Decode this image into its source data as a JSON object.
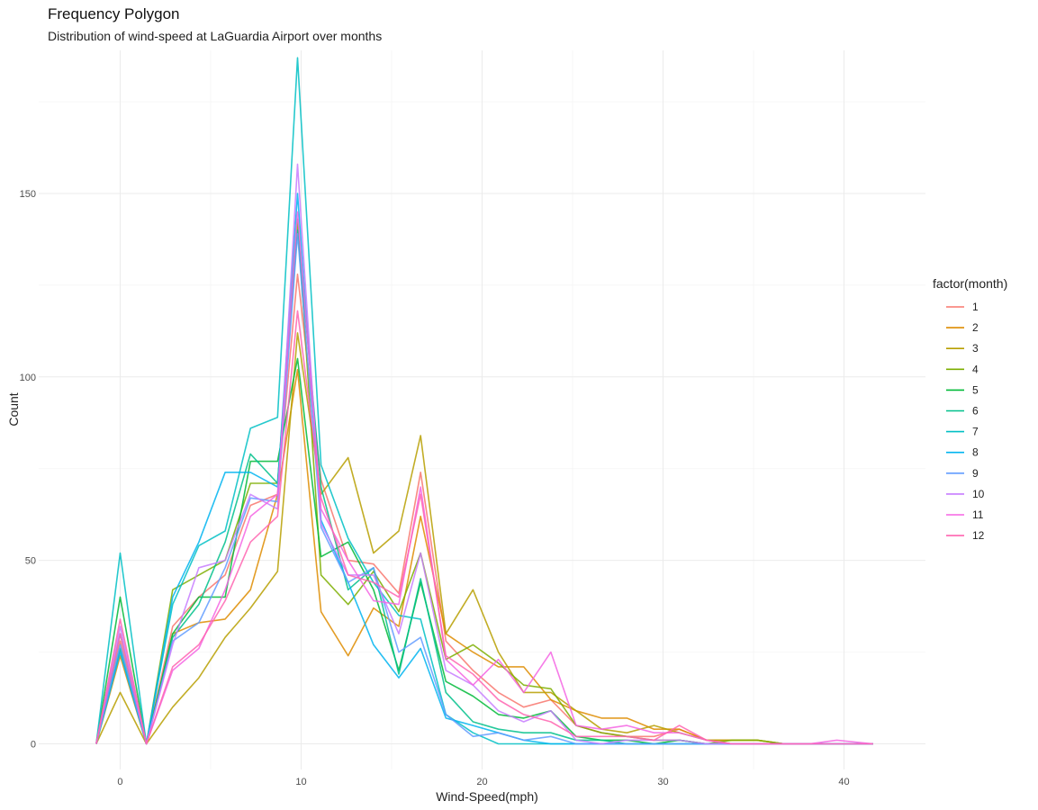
{
  "chart_data": {
    "type": "line",
    "title": "Frequency Polygon",
    "subtitle": "Distribution of wind-speed at LaGuardia Airport over months",
    "xlabel": "Wind-Speed(mph)",
    "ylabel": "Count",
    "xlim": [
      -4.5,
      44.5
    ],
    "ylim": [
      -7,
      189
    ],
    "x_ticks": [
      0,
      10,
      20,
      30,
      40
    ],
    "y_ticks": [
      0,
      50,
      100,
      150
    ],
    "grid": true,
    "legend": {
      "title": "factor(month)",
      "position": "right"
    },
    "x": [
      -1.32,
      0,
      1.45,
      2.9,
      4.35,
      5.8,
      7.2,
      8.7,
      9.8,
      11.1,
      12.6,
      14,
      15.4,
      16.6,
      18,
      19.5,
      20.9,
      22.3,
      23.8,
      25.2,
      26.6,
      28,
      29.5,
      30.9,
      32.4,
      33.8,
      35.2,
      36.7,
      38.1,
      39.6,
      41.6
    ],
    "series": [
      {
        "name": "1",
        "color": "#F8766D",
        "values": [
          0,
          28,
          0,
          32,
          40,
          46,
          65,
          68,
          128,
          72,
          50,
          49,
          41,
          74,
          28,
          20,
          14,
          10,
          12,
          5,
          3,
          2,
          2,
          4,
          1,
          0,
          0,
          0,
          0,
          0,
          0
        ]
      },
      {
        "name": "2",
        "color": "#DE8C00",
        "values": [
          0,
          24,
          0,
          30,
          33,
          34,
          42,
          68,
          102,
          36,
          24,
          37,
          32,
          62,
          30,
          25,
          21,
          21,
          12,
          9,
          7,
          7,
          4,
          4,
          1,
          1,
          1,
          0,
          0,
          0,
          0
        ]
      },
      {
        "name": "3",
        "color": "#B79F00",
        "values": [
          0,
          14,
          0,
          10,
          18,
          29,
          37,
          47,
          112,
          68,
          78,
          52,
          58,
          84,
          30,
          42,
          25,
          14,
          14,
          9,
          4,
          3,
          5,
          3,
          1,
          1,
          1,
          0,
          0,
          0,
          0
        ]
      },
      {
        "name": "4",
        "color": "#7CAE00",
        "values": [
          0,
          30,
          0,
          42,
          46,
          50,
          71,
          71,
          143,
          46,
          38,
          47,
          36,
          52,
          23,
          27,
          22,
          16,
          15,
          5,
          3,
          2,
          1,
          1,
          0,
          1,
          1,
          0,
          0,
          0,
          0
        ]
      },
      {
        "name": "5",
        "color": "#00BA38",
        "values": [
          0,
          40,
          0,
          30,
          40,
          40,
          77,
          77,
          105,
          51,
          55,
          42,
          20,
          44,
          17,
          13,
          8,
          7,
          9,
          2,
          1,
          1,
          0,
          1,
          0,
          0,
          0,
          0,
          0,
          0,
          0
        ]
      },
      {
        "name": "6",
        "color": "#00C08B",
        "values": [
          0,
          26,
          0,
          29,
          38,
          55,
          79,
          71,
          140,
          70,
          42,
          48,
          19,
          45,
          14,
          6,
          4,
          3,
          3,
          1,
          1,
          0,
          0,
          0,
          0,
          0,
          0,
          0,
          0,
          0,
          0
        ]
      },
      {
        "name": "7",
        "color": "#00BFC4",
        "values": [
          0,
          52,
          0,
          38,
          54,
          58,
          86,
          89,
          187,
          76,
          56,
          44,
          35,
          34,
          8,
          3,
          0,
          0,
          0,
          0,
          0,
          0,
          0,
          0,
          0,
          0,
          0,
          0,
          0,
          0,
          0
        ]
      },
      {
        "name": "8",
        "color": "#00B4F0",
        "values": [
          0,
          25,
          0,
          40,
          55,
          74,
          74,
          70,
          150,
          61,
          44,
          27,
          18,
          26,
          7,
          5,
          3,
          1,
          0,
          0,
          0,
          0,
          0,
          0,
          0,
          0,
          0,
          0,
          0,
          0,
          0
        ]
      },
      {
        "name": "9",
        "color": "#619CFF",
        "values": [
          0,
          27,
          0,
          28,
          33,
          48,
          67,
          66,
          139,
          59,
          44,
          48,
          25,
          29,
          8,
          2,
          3,
          1,
          2,
          0,
          0,
          0,
          0,
          0,
          0,
          0,
          0,
          0,
          0,
          0,
          0
        ]
      },
      {
        "name": "10",
        "color": "#C77CFF",
        "values": [
          0,
          32,
          0,
          27,
          48,
          50,
          68,
          64,
          158,
          60,
          46,
          46,
          30,
          52,
          20,
          16,
          9,
          6,
          9,
          1,
          0,
          1,
          1,
          1,
          0,
          0,
          0,
          0,
          0,
          0,
          0
        ]
      },
      {
        "name": "11",
        "color": "#F564E3",
        "values": [
          0,
          30,
          0,
          20,
          26,
          42,
          62,
          68,
          145,
          64,
          50,
          39,
          38,
          70,
          23,
          16,
          23,
          14,
          25,
          5,
          4,
          5,
          3,
          3,
          1,
          0,
          0,
          0,
          0,
          1,
          0
        ]
      },
      {
        "name": "12",
        "color": "#FF64B0",
        "values": [
          0,
          34,
          0,
          21,
          27,
          39,
          55,
          62,
          118,
          67,
          46,
          44,
          40,
          68,
          24,
          19,
          12,
          8,
          6,
          2,
          2,
          2,
          1,
          5,
          1,
          0,
          0,
          0,
          0,
          0,
          0
        ]
      }
    ]
  }
}
